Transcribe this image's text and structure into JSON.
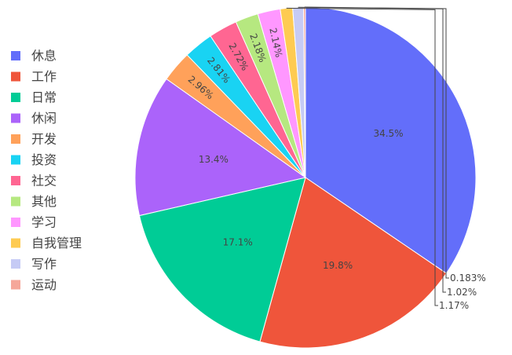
{
  "chart_data": {
    "type": "pie",
    "legend_position": "left",
    "slices": [
      {
        "label": "休息",
        "value": 34.5,
        "text": "34.5%",
        "color": "#636efa"
      },
      {
        "label": "工作",
        "value": 19.8,
        "text": "19.8%",
        "color": "#ef553b"
      },
      {
        "label": "日常",
        "value": 17.1,
        "text": "17.1%",
        "color": "#00cc96"
      },
      {
        "label": "休闲",
        "value": 13.4,
        "text": "13.4%",
        "color": "#ab63fa"
      },
      {
        "label": "开发",
        "value": 2.96,
        "text": "2.96%",
        "color": "#ffa15a"
      },
      {
        "label": "投资",
        "value": 2.81,
        "text": "2.81%",
        "color": "#19d3f3"
      },
      {
        "label": "社交",
        "value": 2.72,
        "text": "2.72%",
        "color": "#ff6692"
      },
      {
        "label": "其他",
        "value": 2.18,
        "text": "2.18%",
        "color": "#b6e880"
      },
      {
        "label": "学习",
        "value": 2.14,
        "text": "2.14%",
        "color": "#ff97ff"
      },
      {
        "label": "自我管理",
        "value": 1.17,
        "text": "1.17%",
        "color": "#fecb52"
      },
      {
        "label": "写作",
        "value": 1.02,
        "text": "1.02%",
        "color": "#c6cbf5"
      },
      {
        "label": "运动",
        "value": 0.183,
        "text": "0.183%",
        "color": "#f5a79a"
      }
    ]
  }
}
